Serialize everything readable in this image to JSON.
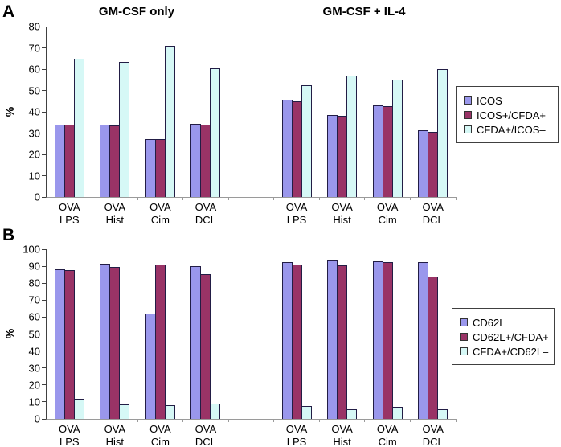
{
  "chart_data": [
    {
      "type": "bar",
      "panel": "A",
      "title_left": "GM-CSF only",
      "title_right": "GM-CSF + IL-4",
      "ylabel": "%",
      "ylim": [
        0,
        80
      ],
      "ytick_step": 10,
      "grid": false,
      "legend_position": "right",
      "categories": [
        "OVA LPS",
        "OVA Hist",
        "OVA Cim",
        "OVA DCL",
        "",
        "OVA LPS",
        "OVA Hist",
        "OVA Cim",
        "OVA DCL"
      ],
      "series": [
        {
          "name": "ICOS",
          "color": "#9a97ec",
          "values": [
            34,
            34,
            27,
            34.5,
            null,
            45.5,
            38.5,
            43,
            31.5
          ]
        },
        {
          "name": "ICOS+/CFDA+",
          "color": "#993366",
          "values": [
            34,
            33.5,
            27,
            34,
            null,
            45,
            38,
            42.5,
            30.5
          ]
        },
        {
          "name": "CFDA+/ICOS–",
          "color": "#d6f8f6",
          "values": [
            65,
            63.5,
            71,
            60.5,
            null,
            52.5,
            57,
            55,
            60
          ]
        }
      ]
    },
    {
      "type": "bar",
      "panel": "B",
      "ylabel": "%",
      "ylim": [
        0,
        100
      ],
      "ytick_step": 10,
      "grid": false,
      "legend_position": "right",
      "categories": [
        "OVA LPS",
        "OVA Hist",
        "OVA Cim",
        "OVA DCL",
        "",
        "OVA LPS",
        "OVA Hist",
        "OVA Cim",
        "OVA DCL"
      ],
      "series": [
        {
          "name": "CD62L",
          "color": "#9a97ec",
          "values": [
            88,
            91.5,
            62,
            90,
            null,
            92.5,
            93.5,
            93,
            92.5
          ]
        },
        {
          "name": "CD62L+/CFDA+",
          "color": "#993366",
          "values": [
            87.5,
            89.5,
            91,
            85.5,
            null,
            91,
            90.5,
            92.5,
            84
          ]
        },
        {
          "name": "CFDA+/CD62L–",
          "color": "#d6f8f6",
          "values": [
            12,
            8.5,
            8,
            9,
            null,
            7.5,
            5.5,
            7,
            5.5
          ]
        }
      ]
    }
  ]
}
